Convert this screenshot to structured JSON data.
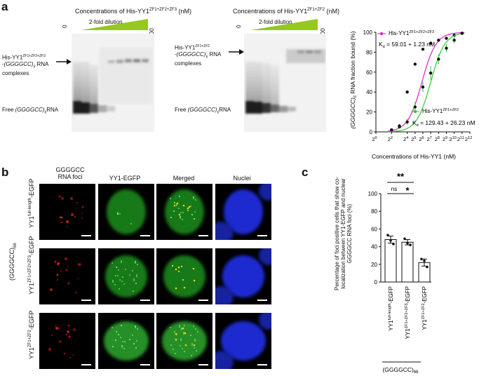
{
  "panel_a": {
    "letter": "a",
    "gel1": {
      "title_main": "Concentrations of His-YY1",
      "title_sup": "ZF1+ZF2+ZF3",
      "title_unit": " (nM)",
      "dilution": "2-fold dilution",
      "conc_zero": "0",
      "conc_max": "2500",
      "complex_label_1a": "His-YY1",
      "complex_label_1b": "ZF1+ZF2+ZF3",
      "complex_label_2a": "-(GGGGCC)",
      "complex_label_2b": "6",
      "complex_label_2c": " RNA",
      "complex_label_3": "complexes",
      "free_label_a": "Free ",
      "free_label_b": "(GGGGCC)",
      "free_label_c": "6",
      "free_label_d": "RNA"
    },
    "gel2": {
      "title_main": "Concentrations of His-YY1",
      "title_sup": "ZF1+ZF2",
      "title_unit": " (nM)",
      "dilution": "2-fold dilution",
      "conc_zero": "0",
      "conc_max": "2500",
      "complex_label_1a": "His-YY1",
      "complex_label_1b": "ZF1+ZF2",
      "complex_label_2a": "-(GGGGCC)",
      "complex_label_2b": "6",
      "complex_label_2c": " RNA",
      "complex_label_3": "complexes",
      "free_label_a": "Free ",
      "free_label_b": "(GGGGCC)",
      "free_label_c": "6",
      "free_label_d": "RNA"
    }
  },
  "binding_curve": {
    "type": "scatter",
    "xlabel": "Concentrations of His-YY1 (nM)",
    "ylabel_a": "(GGGGCC)",
    "ylabel_b": "6",
    "ylabel_c": " RNA fraction bound (%)",
    "x_tick_base": "2",
    "x_exponents": [
      0,
      2,
      4,
      5,
      6,
      7,
      8,
      9,
      10,
      11,
      12
    ],
    "y_ticks": [
      "0",
      "20",
      "40",
      "60",
      "80",
      "100"
    ],
    "ylim": [
      0,
      100
    ],
    "series": [
      {
        "name": "His-YY1",
        "name_sup": "ZF1+ZF2+ZF3",
        "kd": "K",
        "kd_sub": "d",
        "kd_value": " = 59.01 + 1.23 nM",
        "color": "#e020c8",
        "x_log2": [
          2,
          3,
          4,
          5,
          6,
          7,
          8,
          9,
          10,
          11
        ],
        "y": [
          2,
          5,
          40,
          68,
          83,
          89,
          92,
          94,
          97,
          99
        ],
        "kd_log2": 5.88
      },
      {
        "name": "His-YY1",
        "name_sup": "ZF1+ZF2",
        "kd": "K",
        "kd_sub": "d",
        "kd_value": " = 129.43 + 26.23 nM",
        "color": "#2ecc2e",
        "x_log2": [
          2,
          3,
          4,
          5,
          6,
          7,
          8,
          9,
          10,
          11
        ],
        "y": [
          2,
          6,
          10,
          25,
          45,
          59,
          73,
          84,
          92,
          99
        ],
        "err": [
          1,
          2,
          3,
          5,
          5,
          7,
          5,
          4,
          3,
          1
        ],
        "kd_log2": 7.0
      }
    ]
  },
  "panel_b": {
    "letter": "b",
    "col_headers": [
      "GGGGCC\nRNA foci",
      "YY1-EGFP",
      "Merged",
      "Nuclei"
    ],
    "group_label_a": "(GGGGCC)",
    "group_label_b": "66",
    "rows": [
      {
        "label_a": "YY1",
        "label_sup": "full-length",
        "label_b": "-EGFP"
      },
      {
        "label_a": "YY1",
        "label_sup": "ZF1+ZF2+ZF3",
        "label_b": "-EGFP"
      },
      {
        "label_a": "YY1",
        "label_sup": "ZF1+ZF2",
        "label_b": "-EGFP"
      }
    ]
  },
  "panel_c": {
    "letter": "c",
    "type": "bar",
    "ylabel": "Percentage of foci positive cells that show co-localization between YY1-EGFP and nuclear GGGGCC RNA foci (%)",
    "y_ticks": [
      "0",
      "20",
      "40",
      "60",
      "80",
      "100"
    ],
    "ylim": [
      0,
      100
    ],
    "categories": [
      {
        "a": "YY1",
        "sup": "full-length",
        "b": "-EGFP"
      },
      {
        "a": "YY1",
        "sup": "ZF1+ZF2+ZF3",
        "b": "-EGFP"
      },
      {
        "a": "YY1",
        "sup": "ZF1+ZF2",
        "b": "-EGFP"
      }
    ],
    "values": [
      48,
      45,
      22
    ],
    "errors": [
      4,
      3,
      4
    ],
    "points": [
      [
        53,
        47,
        43
      ],
      [
        49,
        44,
        42
      ],
      [
        26,
        24,
        17
      ]
    ],
    "sig_outer": "**",
    "sig_ns": "ns",
    "sig_inner": "*",
    "group_label_a": "(GGGGCC)",
    "group_label_b": "66"
  }
}
